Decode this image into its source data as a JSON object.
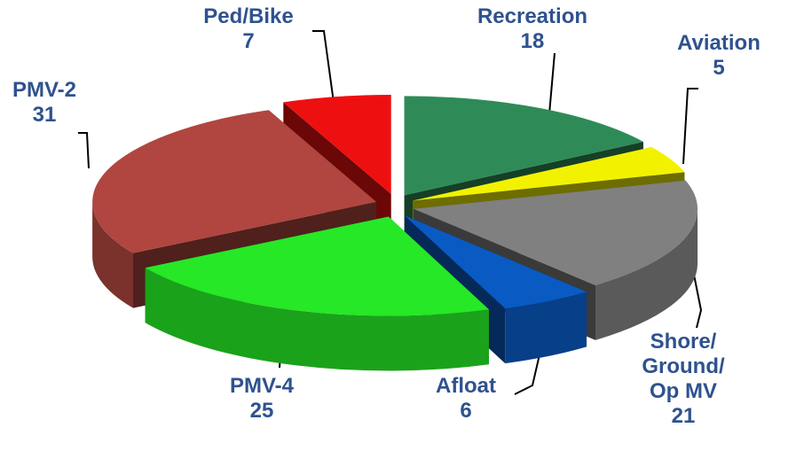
{
  "chart_data": {
    "type": "pie3d",
    "categories": [
      "Recreation",
      "Aviation",
      "Shore/ Ground/ Op MV",
      "Afloat",
      "PMV-4",
      "PMV-2",
      "Ped/Bike"
    ],
    "values": [
      18,
      5,
      21,
      6,
      25,
      31,
      7
    ],
    "colors": [
      "#2e8b57",
      "#f2f200",
      "#808080",
      "#0a5ac4",
      "#26e826",
      "#b0463f",
      "#ee1010"
    ]
  }
}
